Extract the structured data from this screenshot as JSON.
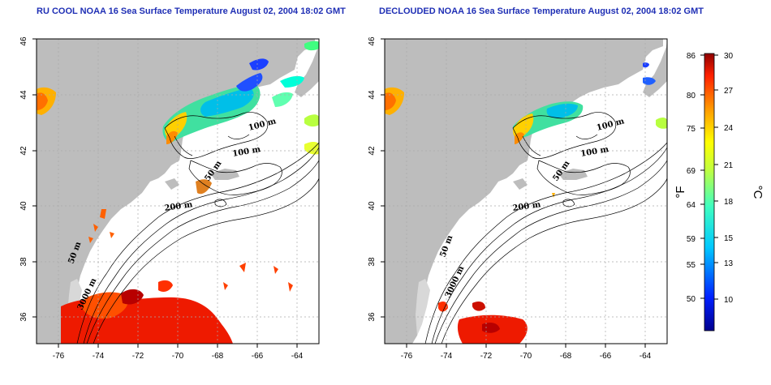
{
  "panels": [
    {
      "title": "RU COOL NOAA 16 Sea Surface Temperature August 02, 2004 18:02 GMT",
      "contour_labels": [
        "100 m",
        "100 m",
        "50 m",
        "200 m",
        "50 m",
        "3000 m"
      ]
    },
    {
      "title": "DECLOUDED NOAA 16 Sea Surface Temperature August 02, 2004 18:02 GMT",
      "contour_labels": [
        "100 m",
        "100 m",
        "50 m",
        "200 m",
        "50 m",
        "3000 m"
      ]
    }
  ],
  "axes": {
    "x_ticks": [
      "-76",
      "-74",
      "-72",
      "-70",
      "-68",
      "-66",
      "-64"
    ],
    "y_ticks": [
      "36",
      "38",
      "40",
      "42",
      "44",
      "46"
    ]
  },
  "colorbar": {
    "f_ticks": [
      "86",
      "80",
      "75",
      "69",
      "64",
      "59",
      "55",
      "50"
    ],
    "c_ticks": [
      "30",
      "27",
      "24",
      "21",
      "18",
      "15",
      "13",
      "10"
    ],
    "f_label": "°F",
    "c_label": "°C"
  },
  "colors": {
    "land": "#bdbdbd",
    "title": "#1f2fb5",
    "grid": "#aaaaaa"
  }
}
